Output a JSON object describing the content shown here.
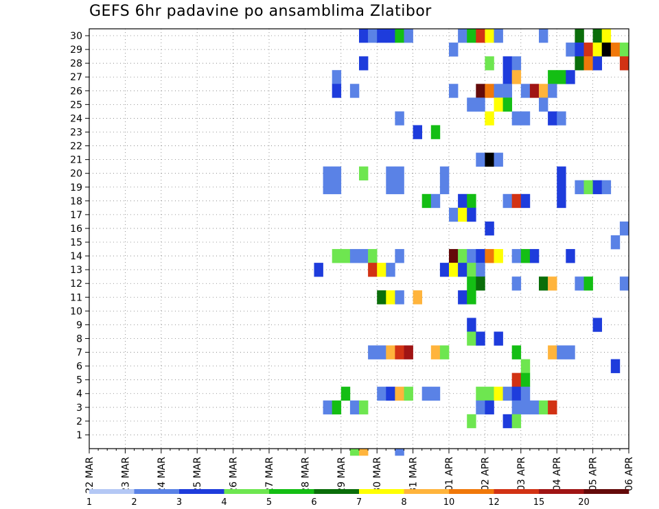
{
  "chart_data": {
    "type": "heatmap",
    "title": "GEFS 6hr padavine po ansamblima Zlatibor",
    "xlabel": "",
    "ylabel": "",
    "x_tick_labels": [
      "22 MAR",
      "23 MAR",
      "24 MAR",
      "25 MAR",
      "26 MAR",
      "27 MAR",
      "28 MAR",
      "29 MAR",
      "30 MAR",
      "31 MAR",
      "01 APR",
      "02 APR",
      "03 APR",
      "04 APR",
      "05 APR",
      "06 APR"
    ],
    "x_unit": "6-hour step (4 per day)",
    "xlim": [
      0,
      60
    ],
    "y_tick_labels": [
      "1",
      "2",
      "3",
      "4",
      "5",
      "6",
      "7",
      "8",
      "9",
      "10",
      "11",
      "12",
      "13",
      "14",
      "15",
      "16",
      "17",
      "18",
      "19",
      "20",
      "21",
      "22",
      "23",
      "24",
      "25",
      "26",
      "27",
      "28",
      "29",
      "30"
    ],
    "ylim": [
      0,
      30
    ],
    "grid": true,
    "colorbar": {
      "labels": [
        "1",
        "2",
        "3",
        "4",
        "5",
        "6",
        "7",
        "8",
        "10",
        "12",
        "15",
        "20"
      ],
      "colors": [
        "#b4c8f5",
        "#5a82e6",
        "#1e3cdc",
        "#6ee650",
        "#14be14",
        "#0a6e0a",
        "#ffff00",
        "#ffb43c",
        "#f0780a",
        "#d23214",
        "#a01414",
        "#640a0a"
      ]
    },
    "cells": [
      [
        30,
        30,
        2
      ],
      [
        31,
        30,
        1
      ],
      [
        32,
        30,
        2
      ],
      [
        33,
        30,
        2
      ],
      [
        34,
        30,
        4
      ],
      [
        35,
        30,
        1
      ],
      [
        41,
        30,
        1
      ],
      [
        42,
        30,
        4
      ],
      [
        43,
        30,
        9
      ],
      [
        44,
        30,
        6
      ],
      [
        45,
        30,
        1
      ],
      [
        50,
        30,
        1
      ],
      [
        54,
        30,
        5
      ],
      [
        56,
        30,
        5
      ],
      [
        57,
        30,
        6
      ],
      [
        40,
        29,
        1
      ],
      [
        53,
        29,
        1
      ],
      [
        54,
        29,
        2
      ],
      [
        55,
        29,
        9
      ],
      [
        56,
        29,
        6
      ],
      [
        57,
        29,
        12
      ],
      [
        58,
        29,
        8
      ],
      [
        59,
        29,
        3
      ],
      [
        30,
        28,
        2
      ],
      [
        44,
        28,
        3
      ],
      [
        46,
        28,
        2
      ],
      [
        47,
        28,
        1
      ],
      [
        54,
        28,
        5
      ],
      [
        55,
        28,
        8
      ],
      [
        56,
        28,
        2
      ],
      [
        59,
        28,
        9
      ],
      [
        27,
        27,
        1
      ],
      [
        46,
        27,
        2
      ],
      [
        47,
        27,
        7
      ],
      [
        51,
        27,
        4
      ],
      [
        52,
        27,
        4
      ],
      [
        53,
        27,
        2
      ],
      [
        27,
        26,
        2
      ],
      [
        29,
        26,
        1
      ],
      [
        40,
        26,
        1
      ],
      [
        43,
        26,
        11
      ],
      [
        44,
        26,
        8
      ],
      [
        45,
        26,
        1
      ],
      [
        46,
        26,
        1
      ],
      [
        48,
        26,
        1
      ],
      [
        49,
        26,
        10
      ],
      [
        50,
        26,
        7
      ],
      [
        51,
        26,
        1
      ],
      [
        42,
        25,
        1
      ],
      [
        43,
        25,
        1
      ],
      [
        45,
        25,
        6
      ],
      [
        46,
        25,
        4
      ],
      [
        50,
        25,
        1
      ],
      [
        34,
        24,
        1
      ],
      [
        44,
        24,
        6
      ],
      [
        47,
        24,
        1
      ],
      [
        48,
        24,
        1
      ],
      [
        51,
        24,
        2
      ],
      [
        52,
        24,
        1
      ],
      [
        36,
        23,
        2
      ],
      [
        38,
        23,
        4
      ],
      [
        43,
        21,
        1
      ],
      [
        44,
        21,
        12
      ],
      [
        45,
        21,
        1
      ],
      [
        26,
        20,
        1
      ],
      [
        27,
        20,
        1
      ],
      [
        30,
        20,
        3
      ],
      [
        33,
        20,
        1
      ],
      [
        34,
        20,
        1
      ],
      [
        39,
        20,
        1
      ],
      [
        52,
        20,
        2
      ],
      [
        26,
        19,
        1
      ],
      [
        27,
        19,
        1
      ],
      [
        33,
        19,
        1
      ],
      [
        34,
        19,
        1
      ],
      [
        39,
        19,
        1
      ],
      [
        52,
        19,
        2
      ],
      [
        54,
        19,
        1
      ],
      [
        55,
        19,
        3
      ],
      [
        56,
        19,
        2
      ],
      [
        57,
        19,
        1
      ],
      [
        37,
        18,
        4
      ],
      [
        38,
        18,
        1
      ],
      [
        41,
        18,
        2
      ],
      [
        42,
        18,
        4
      ],
      [
        46,
        18,
        1
      ],
      [
        47,
        18,
        9
      ],
      [
        48,
        18,
        2
      ],
      [
        52,
        18,
        2
      ],
      [
        40,
        17,
        1
      ],
      [
        41,
        17,
        6
      ],
      [
        42,
        17,
        2
      ],
      [
        44,
        16,
        2
      ],
      [
        59,
        16,
        1
      ],
      [
        58,
        15,
        1
      ],
      [
        27,
        14,
        3
      ],
      [
        28,
        14,
        3
      ],
      [
        29,
        14,
        1
      ],
      [
        30,
        14,
        1
      ],
      [
        31,
        14,
        3
      ],
      [
        34,
        14,
        1
      ],
      [
        40,
        14,
        11
      ],
      [
        41,
        14,
        3
      ],
      [
        42,
        14,
        1
      ],
      [
        43,
        14,
        2
      ],
      [
        44,
        14,
        8
      ],
      [
        45,
        14,
        6
      ],
      [
        47,
        14,
        1
      ],
      [
        48,
        14,
        4
      ],
      [
        49,
        14,
        2
      ],
      [
        53,
        14,
        2
      ],
      [
        25,
        13,
        2
      ],
      [
        31,
        13,
        9
      ],
      [
        32,
        13,
        6
      ],
      [
        33,
        13,
        1
      ],
      [
        39,
        13,
        2
      ],
      [
        40,
        13,
        6
      ],
      [
        41,
        13,
        2
      ],
      [
        42,
        13,
        3
      ],
      [
        43,
        13,
        1
      ],
      [
        42,
        12,
        4
      ],
      [
        43,
        12,
        5
      ],
      [
        47,
        12,
        1
      ],
      [
        50,
        12,
        5
      ],
      [
        51,
        12,
        7
      ],
      [
        54,
        12,
        1
      ],
      [
        55,
        12,
        4
      ],
      [
        59,
        12,
        1
      ],
      [
        32,
        11,
        5
      ],
      [
        33,
        11,
        6
      ],
      [
        34,
        11,
        1
      ],
      [
        36,
        11,
        7
      ],
      [
        41,
        11,
        2
      ],
      [
        42,
        11,
        4
      ],
      [
        42,
        9,
        2
      ],
      [
        56,
        9,
        2
      ],
      [
        42,
        8,
        3
      ],
      [
        43,
        8,
        2
      ],
      [
        45,
        8,
        2
      ],
      [
        31,
        7,
        1
      ],
      [
        32,
        7,
        1
      ],
      [
        33,
        7,
        7
      ],
      [
        34,
        7,
        9
      ],
      [
        35,
        7,
        10
      ],
      [
        38,
        7,
        7
      ],
      [
        39,
        7,
        3
      ],
      [
        47,
        7,
        4
      ],
      [
        51,
        7,
        7
      ],
      [
        52,
        7,
        1
      ],
      [
        53,
        7,
        1
      ],
      [
        48,
        6,
        3
      ],
      [
        58,
        6,
        2
      ],
      [
        47,
        5,
        9
      ],
      [
        48,
        5,
        4
      ],
      [
        28,
        4,
        4
      ],
      [
        32,
        4,
        1
      ],
      [
        33,
        4,
        2
      ],
      [
        34,
        4,
        7
      ],
      [
        35,
        4,
        3
      ],
      [
        37,
        4,
        1
      ],
      [
        38,
        4,
        1
      ],
      [
        43,
        4,
        3
      ],
      [
        44,
        4,
        3
      ],
      [
        45,
        4,
        6
      ],
      [
        46,
        4,
        1
      ],
      [
        47,
        4,
        2
      ],
      [
        48,
        4,
        1
      ],
      [
        26,
        3,
        1
      ],
      [
        27,
        3,
        4
      ],
      [
        29,
        3,
        1
      ],
      [
        30,
        3,
        3
      ],
      [
        43,
        3,
        1
      ],
      [
        44,
        3,
        2
      ],
      [
        47,
        3,
        1
      ],
      [
        48,
        3,
        1
      ],
      [
        49,
        3,
        1
      ],
      [
        50,
        3,
        3
      ],
      [
        51,
        3,
        9
      ],
      [
        42,
        2,
        3
      ],
      [
        46,
        2,
        2
      ],
      [
        47,
        2,
        3
      ],
      [
        29,
        0,
        3
      ],
      [
        30,
        0,
        7
      ],
      [
        34,
        0,
        1
      ]
    ]
  }
}
